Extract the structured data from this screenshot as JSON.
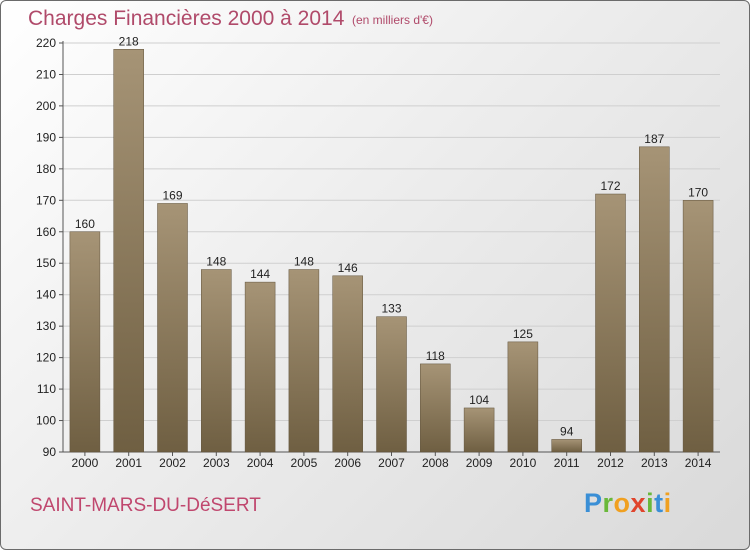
{
  "header": {
    "title": "Charges Financières 2000 à 2014",
    "subtitle": "(en milliers d'€)"
  },
  "footer": {
    "commune": "SAINT-MARS-DU-DéSERT",
    "logo_letters": [
      "P",
      "r",
      "o",
      "x",
      "i",
      "t",
      "i"
    ]
  },
  "colors": {
    "bar_top": "#a69476",
    "bar_bottom": "#6f5f42",
    "gridline": "#cfcfcf",
    "title": "#b04a6a"
  },
  "chart_data": {
    "type": "bar",
    "title": "Charges Financières 2000 à 2014",
    "subtitle": "(en milliers d'€)",
    "xlabel": "",
    "ylabel": "",
    "categories": [
      "2000",
      "2001",
      "2002",
      "2003",
      "2004",
      "2005",
      "2006",
      "2007",
      "2008",
      "2009",
      "2010",
      "2011",
      "2012",
      "2013",
      "2014"
    ],
    "values": [
      160,
      218,
      169,
      148,
      144,
      148,
      146,
      133,
      118,
      104,
      125,
      94,
      172,
      187,
      170
    ],
    "ylim": [
      90,
      220
    ],
    "yticks": [
      90,
      100,
      110,
      120,
      130,
      140,
      150,
      160,
      170,
      180,
      190,
      200,
      210,
      220
    ],
    "grid": true,
    "data_labels": true
  }
}
